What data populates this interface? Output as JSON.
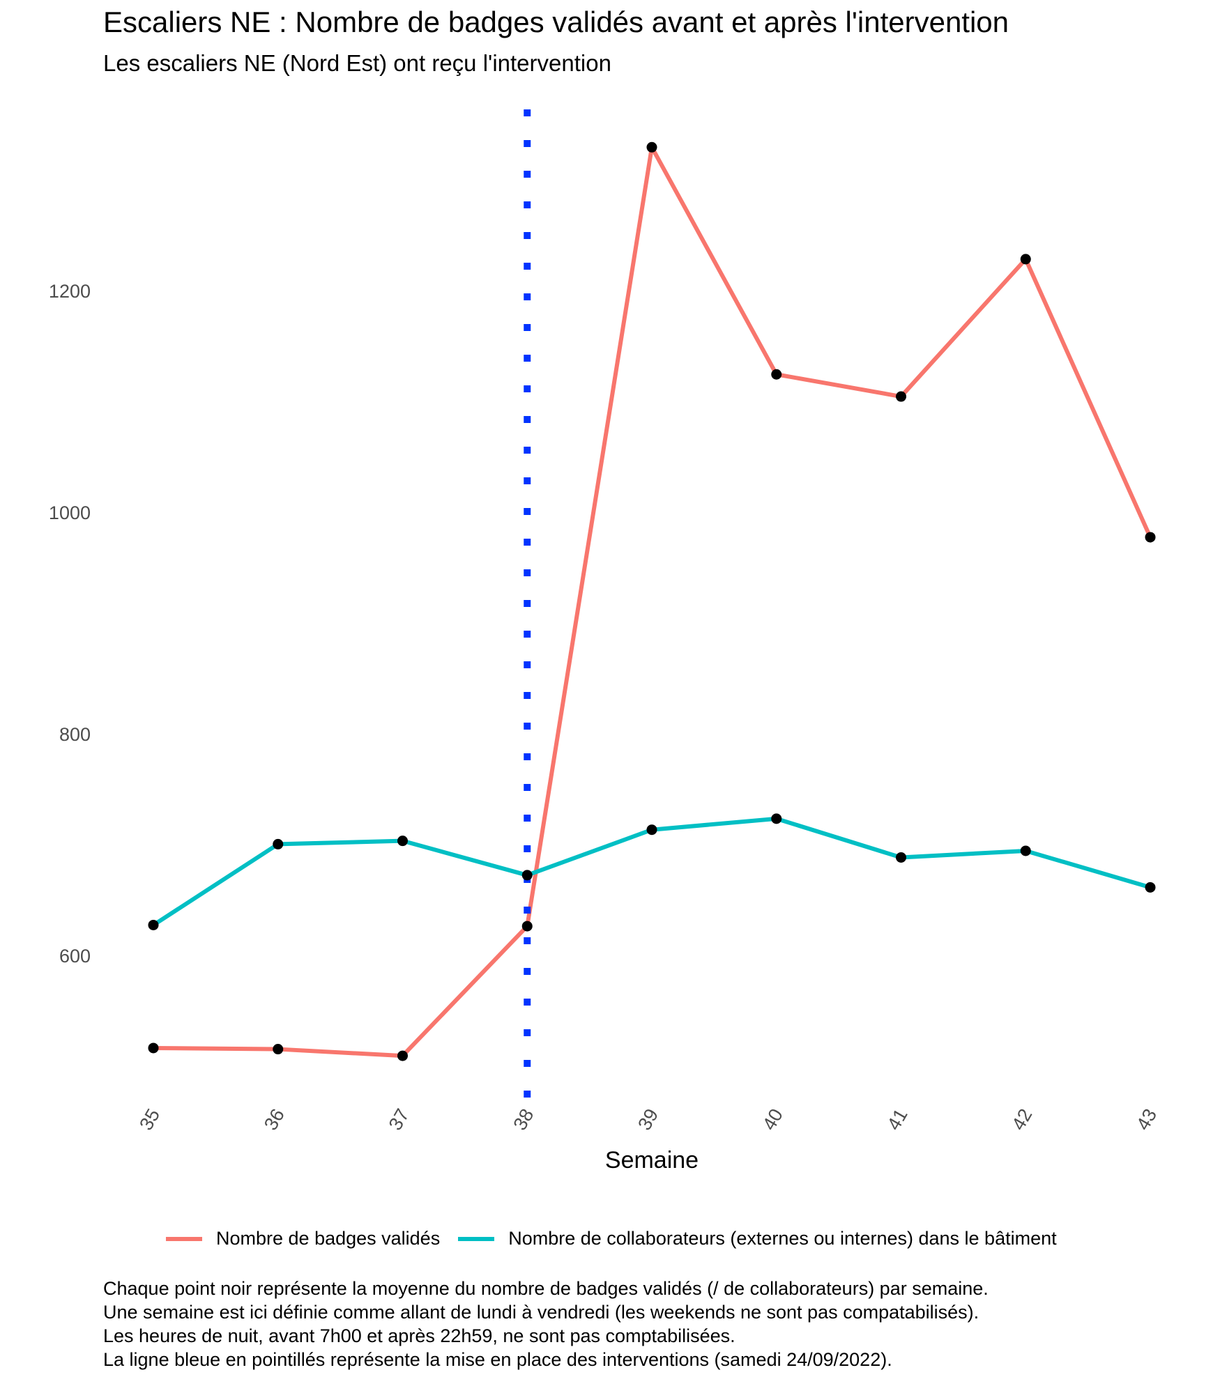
{
  "title": "Escaliers NE : Nombre de badges validés avant et après l'intervention",
  "subtitle": "Les escaliers NE (Nord Est) ont reçu l'intervention",
  "chart_data": {
    "type": "line",
    "x": [
      35,
      36,
      37,
      38,
      39,
      40,
      41,
      42,
      43
    ],
    "x_tick_labels": [
      "35",
      "36",
      "37",
      "38",
      "39",
      "40",
      "41",
      "42",
      "43"
    ],
    "xlabel": "Semaine",
    "ylabel": "",
    "y_ticks": [
      600,
      800,
      1000,
      1200
    ],
    "ylim": [
      470,
      1400
    ],
    "grid": false,
    "legend_position": "bottom",
    "series": [
      {
        "name": "Nombre de badges validés",
        "color": "#F8766D",
        "values": [
          517,
          516,
          510,
          627,
          1330,
          1125,
          1105,
          1229,
          978
        ]
      },
      {
        "name": "Nombre de collaborateurs (externes ou internes) dans le bâtiment",
        "color": "#00BFC4",
        "values": [
          628,
          701,
          704,
          673,
          714,
          724,
          689,
          695,
          662
        ]
      }
    ],
    "point_color": "#000000",
    "annotations": [
      {
        "type": "vline",
        "x": 38,
        "color": "#0033FF",
        "style": "dotted"
      }
    ]
  },
  "caption": [
    "Chaque point noir représente la moyenne du nombre de badges validés (/ de collaborateurs) par semaine.",
    "Une semaine est ici définie comme allant de lundi à vendredi (les weekends ne sont pas compatabilisés).",
    "Les heures de nuit, avant 7h00 et après 22h59, ne sont pas comptabilisées.",
    "La ligne bleue en pointillés représente la mise en place des interventions (samedi 24/09/2022)."
  ]
}
